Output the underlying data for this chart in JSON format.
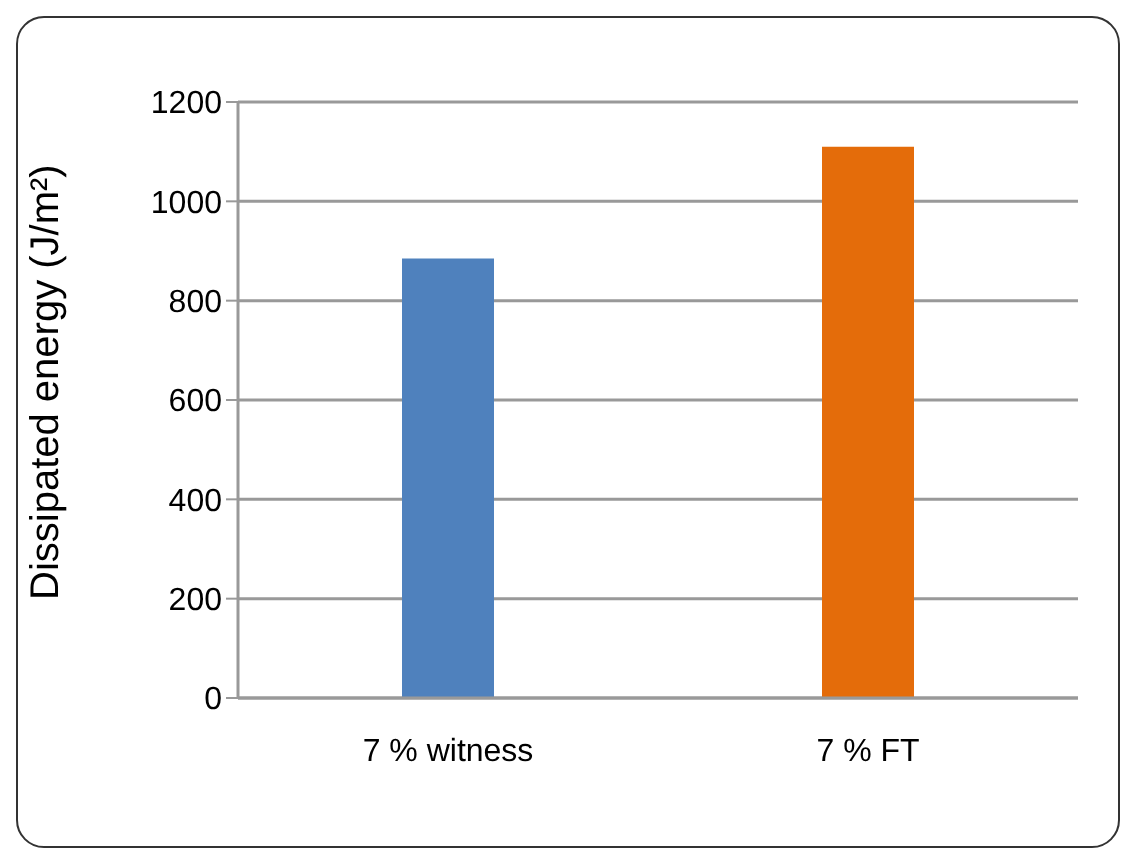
{
  "chart_data": {
    "type": "bar",
    "ylabel": "Dissipated energy (J/m²)",
    "categories": [
      "7 % witness",
      "7 % FT"
    ],
    "values": [
      885,
      1110
    ],
    "colors": [
      "#4f81bd",
      "#e46c0a"
    ],
    "ylim": [
      0,
      1200
    ],
    "yticks": [
      0,
      200,
      400,
      600,
      800,
      1000,
      1200
    ],
    "grid": "y",
    "legend": false
  }
}
